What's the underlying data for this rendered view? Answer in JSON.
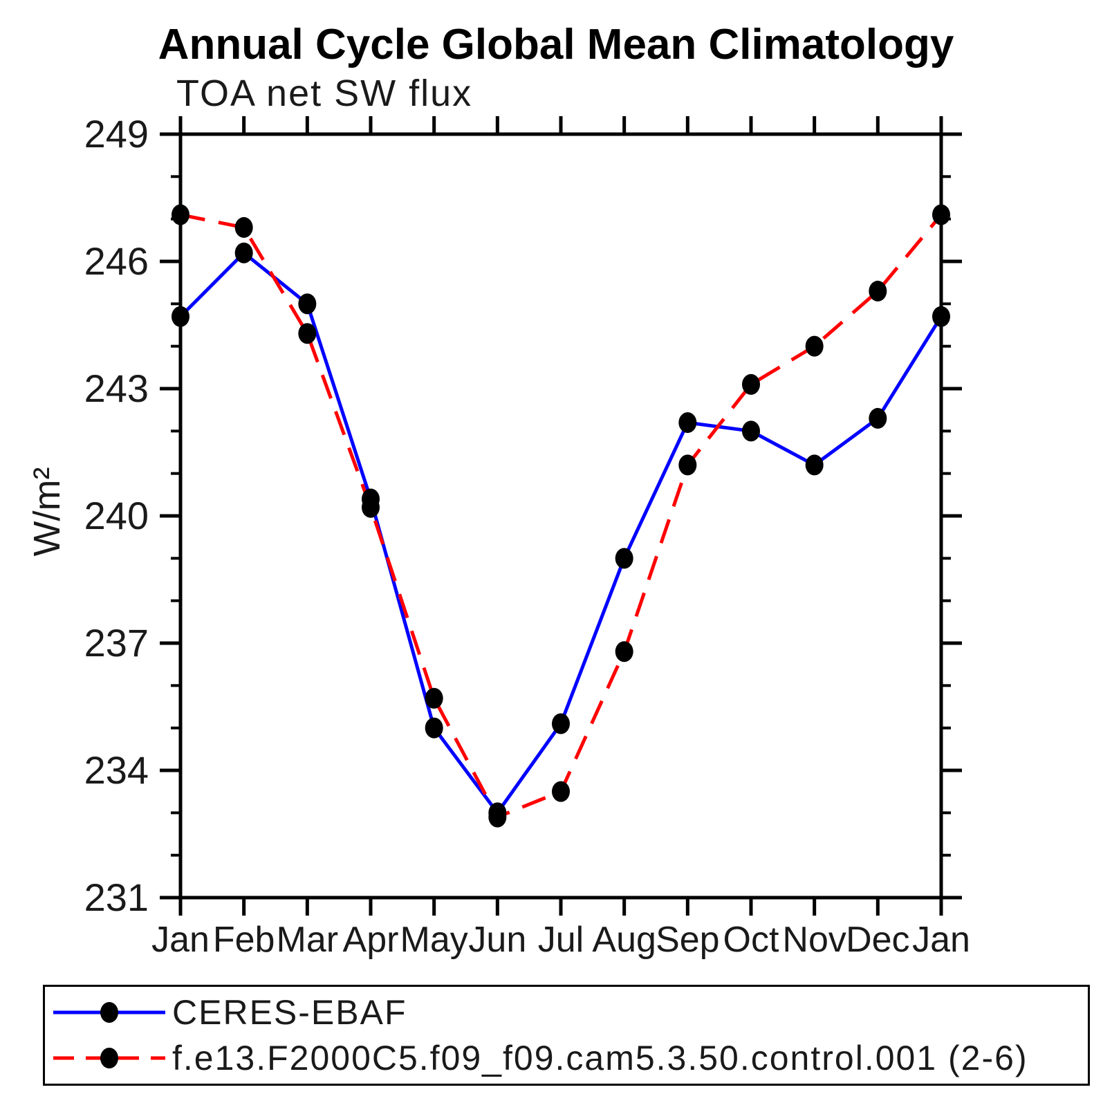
{
  "page": {
    "background": "#ffffff"
  },
  "chart_data": {
    "type": "line",
    "title": "Annual Cycle Global Mean Climatology",
    "subtitle": "TOA net SW flux",
    "ylabel": "W/m²",
    "xlabel": "",
    "categories": [
      "Jan",
      "Feb",
      "Mar",
      "Apr",
      "May",
      "Jun",
      "Jul",
      "Aug",
      "Sep",
      "Oct",
      "Nov",
      "Dec",
      "Jan"
    ],
    "ylim": [
      231,
      249
    ],
    "ytick_major_step": 3,
    "ytick_minor_step": 1,
    "ytick_labels": [
      "249",
      "246",
      "243",
      "240",
      "237",
      "234",
      "231"
    ],
    "grid": false,
    "frame": true,
    "legend_position": "bottom",
    "axis_color": "#000000",
    "series": [
      {
        "name": "CERES-EBAF",
        "color": "#0000ff",
        "style": "solid",
        "marker": "filled-ellipse",
        "marker_color": "#000000",
        "values": [
          244.7,
          246.2,
          245.0,
          240.4,
          235.0,
          233.0,
          235.1,
          239.0,
          242.2,
          242.0,
          241.2,
          242.3,
          244.7
        ]
      },
      {
        "name": "f.e13.F2000C5.f09_f09.cam5.3.50.control.001 (2-6)",
        "color": "#ff0000",
        "style": "dashed",
        "marker": "filled-ellipse",
        "marker_color": "#000000",
        "values": [
          247.1,
          246.8,
          244.3,
          240.2,
          235.7,
          232.9,
          233.5,
          236.8,
          241.2,
          243.1,
          244.0,
          245.3,
          247.1
        ]
      }
    ]
  }
}
